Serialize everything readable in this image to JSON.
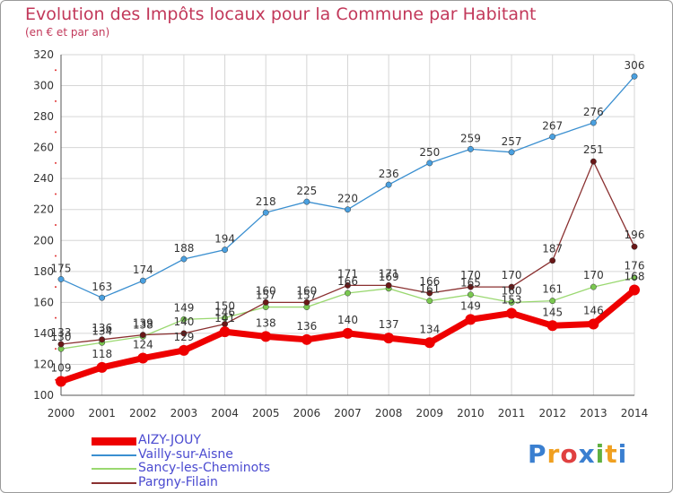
{
  "header": {
    "title": "Evolution des Impôts locaux pour la Commune par Habitant",
    "subtitle": "(en € et par an)"
  },
  "colors": {
    "title": "#c2385a",
    "axis_text": "#333333",
    "grid": "#d6d6d6",
    "legend_text": "#4a4ad0"
  },
  "logo": {
    "text": "Proxiti",
    "letter_colors": [
      "#3a7fd0",
      "#f0a020",
      "#e04040",
      "#3a7fd0",
      "#60b040",
      "#f0a020",
      "#3a7fd0"
    ]
  },
  "chart_data": {
    "type": "line",
    "title": "Evolution des Impôts locaux pour la Commune par Habitant",
    "subtitle": "(en € et par an)",
    "xlabel": "",
    "ylabel": "",
    "x": [
      2000,
      2001,
      2002,
      2003,
      2004,
      2005,
      2006,
      2007,
      2008,
      2009,
      2010,
      2011,
      2012,
      2013,
      2014
    ],
    "ylim": [
      100,
      320
    ],
    "yticks": [
      100,
      120,
      140,
      160,
      180,
      200,
      220,
      240,
      260,
      280,
      300,
      320
    ],
    "grid": true,
    "legend_position": "bottom-left",
    "series": [
      {
        "name": "Vailly-sur-Aisne",
        "color": "#3a8fd0",
        "marker_color": "#4aa0e0",
        "width": 1.3,
        "values": [
          175,
          163,
          174,
          188,
          194,
          218,
          225,
          220,
          236,
          250,
          259,
          257,
          267,
          276,
          306
        ],
        "labels": [
          "175",
          "163",
          "174",
          "188",
          "194",
          "218",
          "225",
          "220",
          "236",
          "250",
          "259",
          "257",
          "267",
          "276",
          "306"
        ]
      },
      {
        "name": "Sancy-les-Cheminots",
        "color": "#9ad870",
        "marker_color": "#7ac850",
        "width": 1.3,
        "values": [
          130,
          134,
          138,
          149,
          150,
          157,
          157,
          166,
          169,
          161,
          165,
          160,
          161,
          170,
          176
        ],
        "labels": [
          "130",
          "134",
          "138",
          "149",
          "150",
          "157",
          "157",
          "166",
          "169",
          "161",
          "165",
          "160",
          "161",
          "170",
          "176"
        ]
      },
      {
        "name": "Pargny-Filain",
        "color": "#8a3030",
        "marker_color": "#6a1818",
        "width": 1.3,
        "values": [
          133,
          136,
          139,
          140,
          146,
          160,
          160,
          171,
          171,
          166,
          170,
          170,
          187,
          251,
          196
        ],
        "labels": [
          "133",
          "136",
          "139",
          "140",
          "146",
          "160",
          "160",
          "171",
          "171",
          "166",
          "170",
          "170",
          "187",
          "251",
          "196"
        ]
      },
      {
        "name": "AIZY-JOUY",
        "color": "#ee0000",
        "marker_color": "#ee0000",
        "width": 7,
        "values": [
          109,
          118,
          124,
          129,
          141,
          138,
          136,
          140,
          137,
          134,
          149,
          153,
          145,
          146,
          168
        ],
        "labels": [
          "109",
          "118",
          "124",
          "129",
          "141",
          "138",
          "136",
          "140",
          "137",
          "134",
          "149",
          "153",
          "145",
          "146",
          "168"
        ]
      }
    ],
    "legend_order": [
      "AIZY-JOUY",
      "Vailly-sur-Aisne",
      "Sancy-les-Cheminots",
      "Pargny-Filain"
    ]
  }
}
